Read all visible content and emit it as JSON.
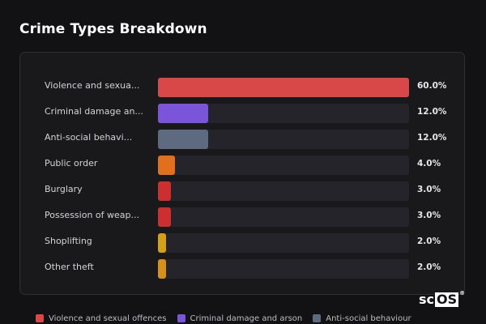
{
  "title": "Crime Types Breakdown",
  "chart_data": {
    "type": "bar",
    "orientation": "horizontal",
    "title": "Crime Types Breakdown",
    "xlim": [
      0,
      60
    ],
    "categories": [
      "Violence and sexua...",
      "Criminal damage an...",
      "Anti-social behavi...",
      "Public order",
      "Burglary",
      "Possession of weap...",
      "Shoplifting",
      "Other theft"
    ],
    "values": [
      60.0,
      12.0,
      12.0,
      4.0,
      3.0,
      3.0,
      2.0,
      2.0
    ],
    "value_labels": [
      "60.0%",
      "12.0%",
      "12.0%",
      "4.0%",
      "3.0%",
      "3.0%",
      "2.0%",
      "2.0%"
    ],
    "colors": [
      "#d94848",
      "#7b55d9",
      "#5e6a80",
      "#e0701e",
      "#cc2f2f",
      "#cc2f2f",
      "#d4a017",
      "#d4921c"
    ],
    "legend": [
      {
        "label": "Violence and sexual offences",
        "color": "#d94848"
      },
      {
        "label": "Criminal damage and arson",
        "color": "#7b55d9"
      },
      {
        "label": "Anti-social behaviour",
        "color": "#5e6a80"
      }
    ],
    "legend_position": "bottom",
    "grid": false
  },
  "logo": {
    "text_left": "sc",
    "text_box": "OS",
    "mark": "®"
  }
}
